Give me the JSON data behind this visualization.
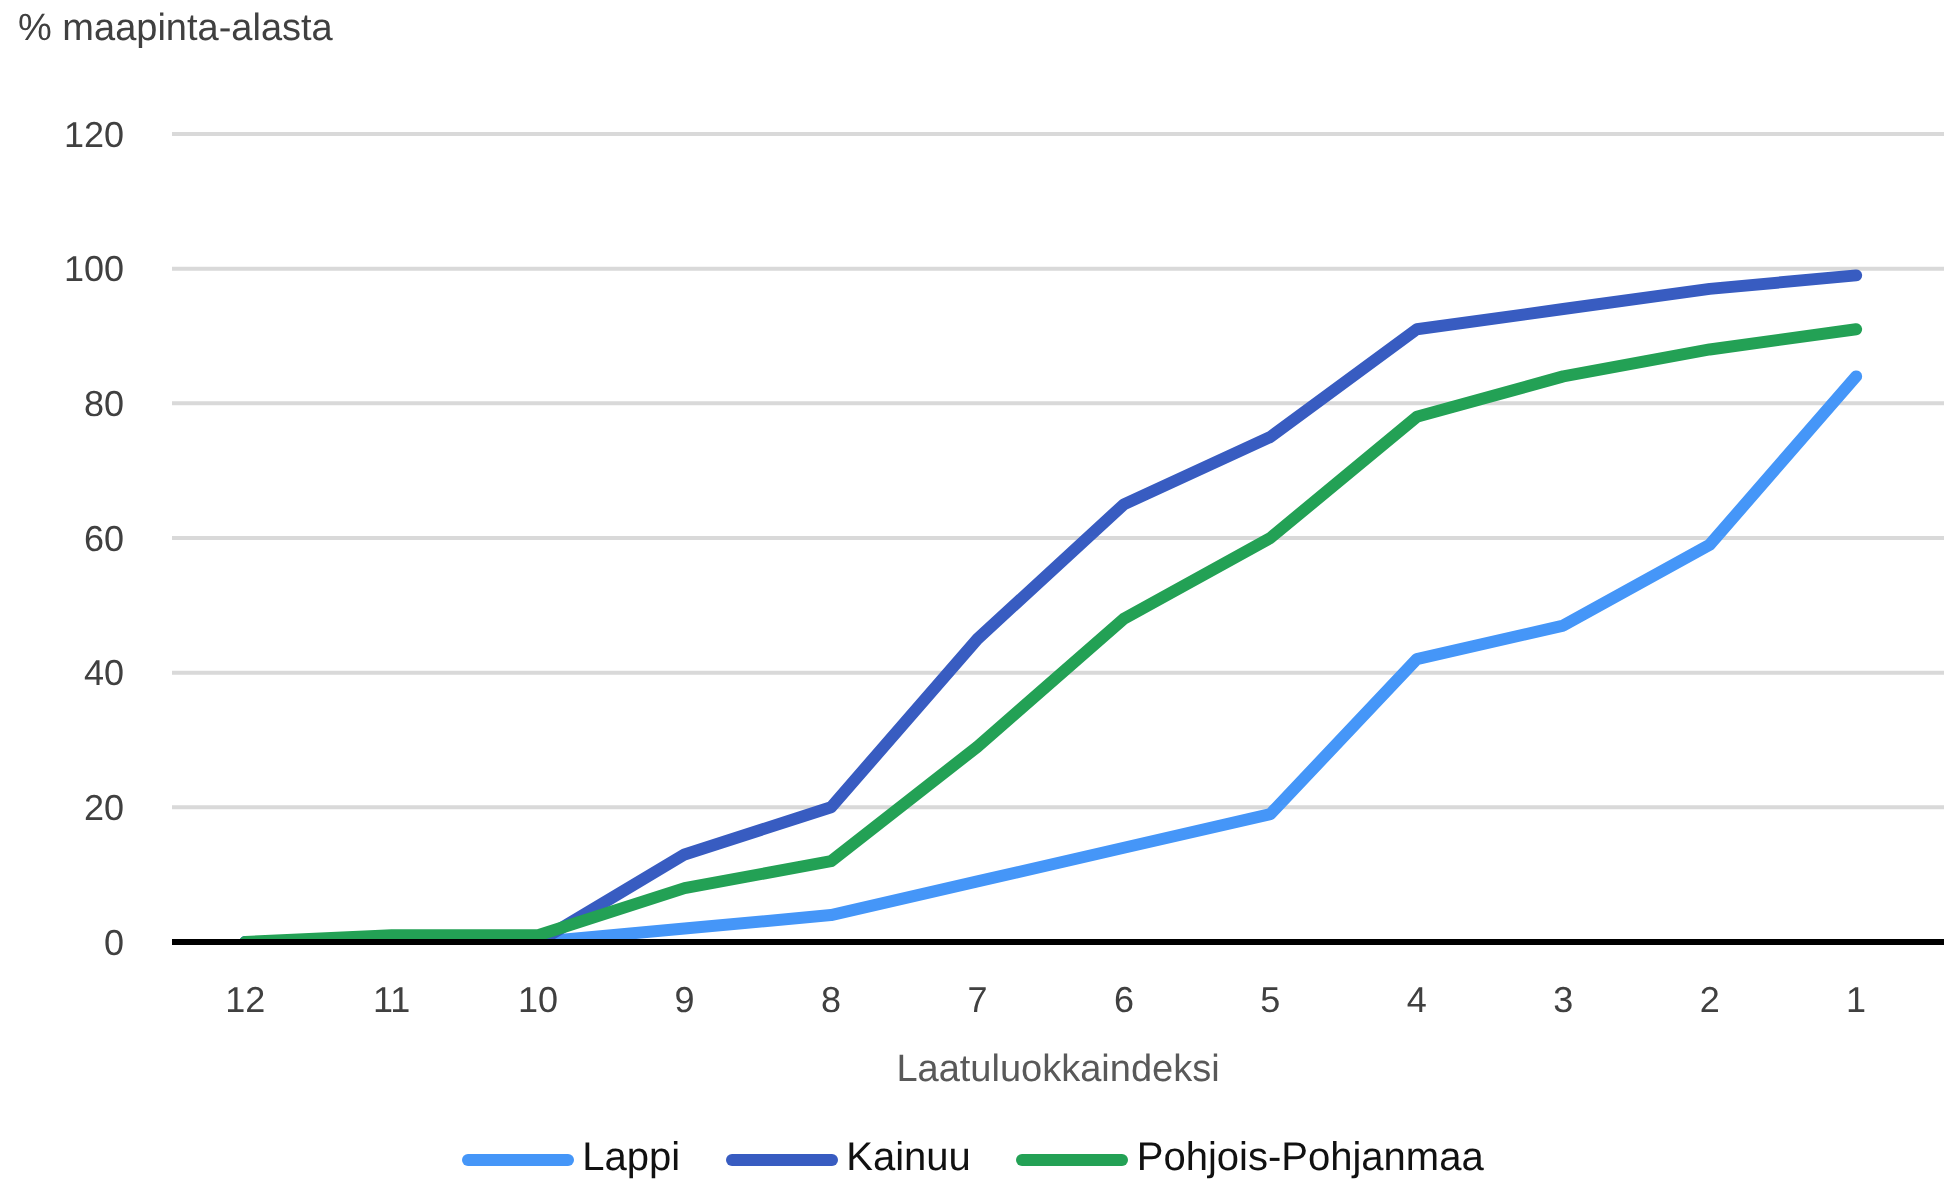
{
  "chart_data": {
    "type": "line",
    "xlabel": "Laatuluokkaindeksi",
    "ylabel": "% maapinta-alasta",
    "categories": [
      "12",
      "11",
      "10",
      "9",
      "8",
      "7",
      "6",
      "5",
      "4",
      "3",
      "2",
      "1"
    ],
    "series": [
      {
        "name": "Lappi",
        "color": "#4596f8",
        "values": [
          0,
          0,
          0,
          2,
          4,
          9,
          14,
          19,
          42,
          47,
          59,
          84
        ]
      },
      {
        "name": "Kainuu",
        "color": "#385cc1",
        "values": [
          0,
          0,
          0,
          13,
          20,
          45,
          65,
          75,
          91,
          94,
          97,
          99
        ]
      },
      {
        "name": "Pohjois-Pohjanmaa",
        "color": "#23a155",
        "values": [
          0,
          1,
          1,
          8,
          12,
          29,
          48,
          60,
          78,
          84,
          88,
          91
        ]
      }
    ],
    "ylim": [
      0,
      120
    ],
    "yticks": [
      0,
      20,
      40,
      60,
      80,
      100,
      120
    ],
    "grid": "y",
    "legend": "bottom"
  }
}
